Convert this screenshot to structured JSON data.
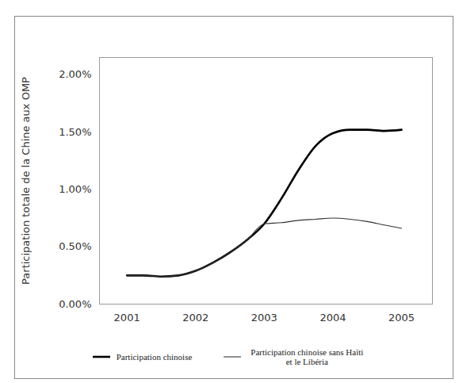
{
  "chart_data": {
    "type": "line",
    "y_label": "Participation totale de la Chine aux OMP",
    "x": [
      2001,
      2001.25,
      2001.5,
      2001.75,
      2002,
      2002.25,
      2002.5,
      2002.75,
      2003,
      2003.25,
      2003.5,
      2003.75,
      2004,
      2004.25,
      2004.5,
      2004.75,
      2005
    ],
    "series": [
      {
        "name": "Participation chinoise",
        "color": "#000000",
        "values": [
          0.25,
          0.25,
          0.24,
          0.25,
          0.29,
          0.36,
          0.45,
          0.56,
          0.7,
          0.92,
          1.17,
          1.38,
          1.49,
          1.52,
          1.52,
          1.51,
          1.52
        ]
      },
      {
        "name": "Participation chinoise sans Haïti et le Libéria",
        "color": "#333333",
        "values": [
          0.25,
          0.25,
          0.24,
          0.25,
          0.29,
          0.36,
          0.45,
          0.56,
          0.7,
          0.71,
          0.73,
          0.74,
          0.75,
          0.74,
          0.72,
          0.69,
          0.66
        ]
      }
    ],
    "xlim": [
      2000.6,
      2005.45
    ],
    "xticks": [
      2001,
      2002,
      2003,
      2004,
      2005
    ],
    "ylim": [
      0,
      2.15
    ],
    "yticks": [
      {
        "value": 0,
        "label": "0.00%"
      },
      {
        "value": 0.5,
        "label": "0.50%"
      },
      {
        "value": 1,
        "label": "1.00%"
      },
      {
        "value": 1.5,
        "label": "1.50%"
      },
      {
        "value": 2,
        "label": "2.00%"
      }
    ],
    "grid": false,
    "legend": "bottom"
  }
}
